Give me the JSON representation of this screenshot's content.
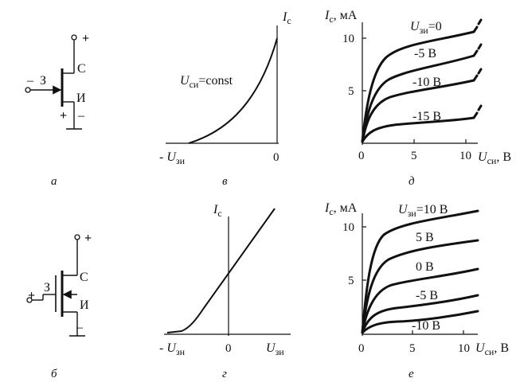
{
  "panels": {
    "a": {
      "caption": "а",
      "gate_sign": "–",
      "gate_label": "З",
      "drain_sign": "+",
      "drain_label": "С",
      "source_label": "И",
      "source_plus": "+",
      "source_minus": "–"
    },
    "b": {
      "caption": "б",
      "gate_sign": "+",
      "gate_label": "З",
      "drain_sign": "+",
      "drain_label": "С",
      "source_label": "И",
      "source_minus": "–"
    },
    "v": {
      "caption": "в",
      "y_label": "I",
      "y_label_sub": "с",
      "x_label_prefix": "- U",
      "x_label_sub": "зи",
      "x_zero": "0",
      "annotation": "U",
      "annotation_sub": "си",
      "annotation_rest": "=const"
    },
    "g": {
      "caption": "г",
      "y_label": "I",
      "y_label_sub": "с",
      "x_left_prefix": "- U",
      "x_left_sub": "зн",
      "x_zero": "0",
      "x_right": "U",
      "x_right_sub": "зи"
    },
    "d": {
      "caption": "д",
      "y_label": "I",
      "y_label_sub": "с",
      "y_unit": ", мА",
      "x_label": "U",
      "x_label_sub": "си",
      "x_unit": ", В",
      "y_ticks": [
        "10",
        "5"
      ],
      "x_ticks": [
        "0",
        "5",
        "10"
      ],
      "curve_labels": [
        {
          "prefix": "U",
          "sub": "зи",
          "rest": "=0"
        },
        {
          "prefix": "",
          "sub": "",
          "rest": "-5 В"
        },
        {
          "prefix": "",
          "sub": "",
          "rest": "-10 В"
        },
        {
          "prefix": "",
          "sub": "",
          "rest": "-15 В"
        }
      ]
    },
    "e": {
      "caption": "е",
      "y_label": "I",
      "y_label_sub": "с",
      "y_unit": ", мА",
      "x_label": "U",
      "x_label_sub": "си",
      "x_unit": ", В",
      "y_ticks": [
        "10",
        "5"
      ],
      "x_ticks": [
        "0",
        "5",
        "10"
      ],
      "curve_labels": [
        {
          "prefix": "U",
          "sub": "зи",
          "rest": "=10 В"
        },
        {
          "prefix": "",
          "sub": "",
          "rest": "5 В"
        },
        {
          "prefix": "",
          "sub": "",
          "rest": "0 В"
        },
        {
          "prefix": "",
          "sub": "",
          "rest": "-5 В"
        },
        {
          "prefix": "",
          "sub": "",
          "rest": "-10 В"
        }
      ]
    }
  }
}
